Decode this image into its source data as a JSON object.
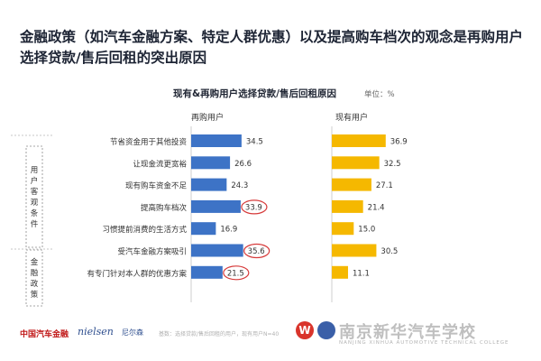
{
  "page": {
    "title": "金融政策（如汽车金融方案、特定人群优惠）以及提高购车档次的观念是再购用户选择贷款/售后回租的突出原因"
  },
  "chart_data": {
    "type": "bar",
    "title": "现有&再购用户选择贷款/售后回租原因",
    "unit": "单位：%",
    "categories": [
      "节省资金用于其他投资",
      "让现金流更宽裕",
      "现有购车资金不足",
      "提高购车档次",
      "习惯提前消费的生活方式",
      "受汽车金融方案吸引",
      "有专门针对本人群的优惠方案"
    ],
    "series": [
      {
        "name": "再购用户",
        "values": [
          34.5,
          26.6,
          24.3,
          33.9,
          16.9,
          35.6,
          21.5
        ],
        "color": "#3d73c6",
        "highlighted": [
          3,
          5,
          6
        ]
      },
      {
        "name": "现有用户",
        "values": [
          36.9,
          32.5,
          27.1,
          21.4,
          15.0,
          30.5,
          11.1
        ],
        "color": "#f5b800"
      }
    ],
    "groups": [
      {
        "label": "用户客观条件",
        "chars": [
          "用",
          "户",
          "客",
          "观",
          "条",
          "件"
        ],
        "rows": [
          0,
          4
        ]
      },
      {
        "label": "金融政策",
        "chars": [
          "金",
          "融",
          "政",
          "策"
        ],
        "rows": [
          5,
          6
        ]
      }
    ],
    "value_labels": [
      "34.5",
      "26.6",
      "24.3",
      "33.9",
      "16.9",
      "35.6",
      "21.5",
      "36.9",
      "32.5",
      "27.1",
      "21.4",
      "15.0",
      "30.5",
      "11.1"
    ],
    "xlim": [
      0,
      40
    ],
    "grid": false,
    "legend": "none"
  },
  "footer": {
    "logo_cn": "中国汽车金融",
    "logo_nielsen": "nielsen",
    "logo_nielsen_cn": "尼尔森",
    "note": "基数：选择贷款/售后回租的用户，现有用户N=40",
    "watermark": "南京新华汽车学校",
    "watermark_sub": "NANJING XINHUA AUTOMOTIVE TECHNICAL COLLEGE"
  }
}
